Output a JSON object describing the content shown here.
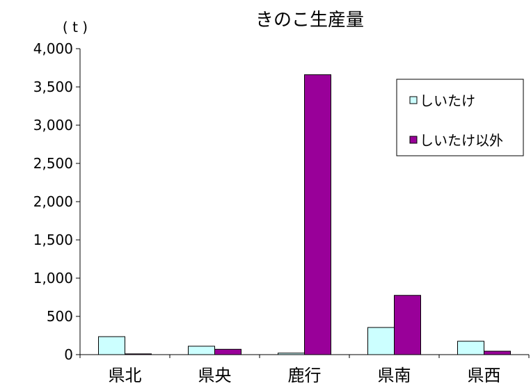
{
  "chart_data": {
    "type": "bar",
    "title": "きのこ生産量",
    "unit_label": "( t )",
    "categories": [
      "県北",
      "県央",
      "鹿行",
      "県南",
      "県西"
    ],
    "series": [
      {
        "name": "しいたけ",
        "color": "#ccffff",
        "values": [
          235,
          110,
          20,
          355,
          175
        ]
      },
      {
        "name": "しいたけ以外",
        "color": "#990099",
        "values": [
          10,
          70,
          3660,
          775,
          45
        ]
      }
    ],
    "ylim": [
      0,
      4000
    ],
    "y_ticks": [
      "0",
      "500",
      "1,000",
      "1,500",
      "2,000",
      "2,500",
      "3,000",
      "3,500",
      "4,000"
    ],
    "y_tick_values": [
      0,
      500,
      1000,
      1500,
      2000,
      2500,
      3000,
      3500,
      4000
    ],
    "grid": false,
    "legend_position": "top-right"
  }
}
